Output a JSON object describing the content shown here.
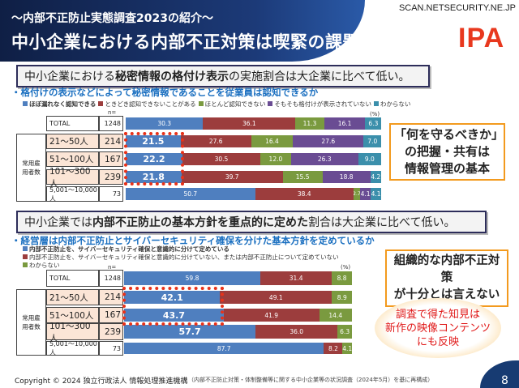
{
  "header": {
    "subtitle": "～内部不正防止実態調査2023の紹介～",
    "title": "中小企業における内部不正対策は喫緊の課題",
    "watermark": "SCAN.NETSECURITY.NE.JP",
    "logo": "IPA"
  },
  "colors": {
    "blue": "#4f7fbf",
    "red": "#9c3d3d",
    "green": "#7a9a3f",
    "purple": "#6a4c93",
    "teal": "#3b8fab",
    "highlight": "#e8321a",
    "orange": "#f39a1e"
  },
  "section1": {
    "headline_pre": "中小企業における",
    "headline_bold": "秘密情報の格付け表示",
    "headline_post": "の実施割合は大企業に比べて低い。",
    "question": "・格付けの表示などによって秘密情報であることを従業員は認知できるか",
    "legend": [
      "ほぼ漏れなく認知できる",
      "ときどき認知できないことがある",
      "ほとんど認知できない",
      "そもそも格付けが表示されていない",
      "わからない"
    ],
    "n_label": "n=",
    "pct_label": "(%)",
    "group_label": "常用雇用者数",
    "callout": [
      "「何を守るべきか」",
      "の把握・共有は",
      "情報管理の基本"
    ]
  },
  "section2": {
    "headline_pre": "中小企業では",
    "headline_bold": "内部不正防止の基本方針を重点的に定めた",
    "headline_post": "割合は大企業に比べて低い。",
    "question": "・経営層は内部不正防止とサイバーセキュリティ確保を分けた基本方針を定めているか",
    "legend": [
      "内部不正防止を、サイバーセキュリティ確保と意識的に分けて定めている",
      "内部不正防止を、サイバーセキュリティ確保と意識的に分けていない、または内部不正防止について定めていない",
      "わからない"
    ],
    "n_label": "n=",
    "pct_label": "(%)",
    "group_label": "常用雇用者数",
    "callout": [
      "組織的な内部不正対策",
      "が十分とは言えない"
    ],
    "ellipse": [
      "調査で得た知見は",
      "新作の映像コンテンツ",
      "にも反映"
    ]
  },
  "chart_data": [
    {
      "type": "bar",
      "stacked": true,
      "orientation": "horizontal",
      "title": "格付けの表示などによって秘密情報であることを従業員は認知できるか",
      "xlim": [
        0,
        100
      ],
      "categories": [
        "TOTAL",
        "21～50人",
        "51～100人",
        "101～300人",
        "5,001～10,000人"
      ],
      "n": [
        "1248",
        "214",
        "167",
        "239",
        "73"
      ],
      "series": [
        {
          "name": "ほぼ漏れなく認知できる",
          "values": [
            30.3,
            21.5,
            22.2,
            21.8,
            50.7
          ]
        },
        {
          "name": "ときどき認知できないことがある",
          "values": [
            36.1,
            27.6,
            30.5,
            39.7,
            38.4
          ]
        },
        {
          "name": "ほとんど認知できない",
          "values": [
            11.3,
            16.4,
            12.0,
            15.5,
            2.7
          ]
        },
        {
          "name": "そもそも格付けが表示されていない",
          "values": [
            16.1,
            27.6,
            26.3,
            18.8,
            4.1
          ]
        },
        {
          "name": "わからない",
          "values": [
            6.3,
            7.0,
            9.0,
            4.2,
            4.1
          ]
        }
      ],
      "highlighted_rows": [
        1,
        2,
        3
      ]
    },
    {
      "type": "bar",
      "stacked": true,
      "orientation": "horizontal",
      "title": "経営層は内部不正防止とサイバーセキュリティ確保を分けた基本方針を定めているか",
      "xlim": [
        0,
        100
      ],
      "categories": [
        "TOTAL",
        "21～50人",
        "51～100人",
        "101～300人",
        "5,001～10,000人"
      ],
      "n": [
        "1248",
        "214",
        "167",
        "239",
        "73"
      ],
      "series": [
        {
          "name": "分けて定めている",
          "values": [
            59.8,
            42.1,
            43.7,
            57.7,
            87.7
          ]
        },
        {
          "name": "分けていない/定めていない",
          "values": [
            31.4,
            49.1,
            41.9,
            36.0,
            8.2
          ]
        },
        {
          "name": "わからない",
          "values": [
            8.8,
            8.9,
            14.4,
            6.3,
            4.1
          ]
        }
      ],
      "highlighted_rows": [
        1,
        2
      ]
    }
  ],
  "footer": {
    "copyright": "Copyright © 2024 独立行政法人 情報処理推進機構",
    "source": "（内部不正防止対策・体制整備等に関する中小企業等の状況調査（2024年5月）を基に再構成）",
    "page": "8"
  }
}
